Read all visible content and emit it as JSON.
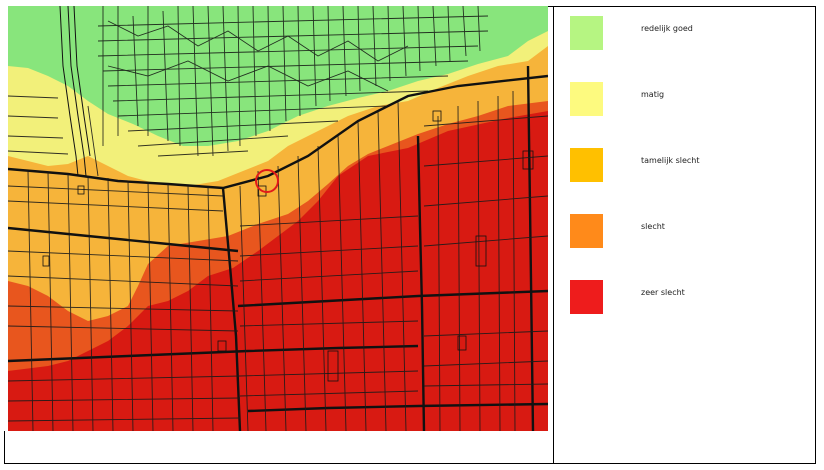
{
  "map": {
    "zones": [
      {
        "name": "redelijk goed",
        "color": "#88e57c"
      },
      {
        "name": "matig",
        "color": "#f2f07a"
      },
      {
        "name": "tamelijk slecht",
        "color": "#f6b43a"
      },
      {
        "name": "slecht",
        "color": "#e8561e"
      },
      {
        "name": "zeer slecht",
        "color": "#d81a12"
      }
    ],
    "marker": "circle-marker"
  },
  "legend": {
    "items": [
      {
        "label": "redelijk goed",
        "color": "#b6f582"
      },
      {
        "label": "matig",
        "color": "#fdfa7f"
      },
      {
        "label": "tamelijk slecht",
        "color": "#ffc000"
      },
      {
        "label": "slecht",
        "color": "#ff8a1a"
      },
      {
        "label": "zeer slecht",
        "color": "#ee1c1c"
      }
    ]
  }
}
